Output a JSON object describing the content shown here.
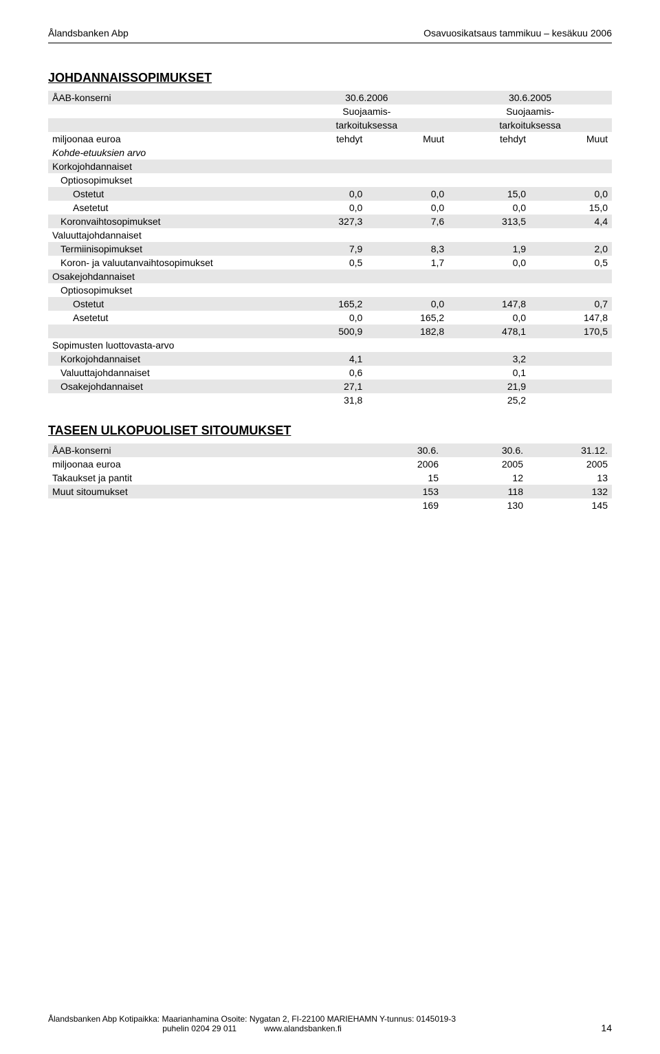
{
  "header": {
    "left": "Ålandsbanken Abp",
    "right": "Osavuosikatsaus tammikuu – kesäkuu 2006"
  },
  "section1": {
    "title": "JOHDANNAISSOPIMUKSET",
    "top_row": {
      "c0": "ÅAB-konserni",
      "c1": "30.6.2006",
      "c2": "30.6.2005"
    },
    "sub1_row": {
      "c1": "Suojaamis-",
      "c2": "Suojaamis-"
    },
    "sub2_row": {
      "c1": "tarkoituksessa",
      "c2": "tarkoituksessa"
    },
    "col_row": {
      "c0": "miljoonaa euroa",
      "c1": "tehdyt",
      "c2": "Muut",
      "c3": "tehdyt",
      "c4": "Muut"
    },
    "rows": [
      {
        "shaded": false,
        "italic": true,
        "indent": 0,
        "label": "Kohde-etuuksien arvo",
        "v": [
          "",
          "",
          "",
          ""
        ]
      },
      {
        "shaded": true,
        "italic": false,
        "indent": 0,
        "label": "Korkojohdannaiset",
        "v": [
          "",
          "",
          "",
          ""
        ]
      },
      {
        "shaded": false,
        "italic": false,
        "indent": 1,
        "label": "Optiosopimukset",
        "v": [
          "",
          "",
          "",
          ""
        ]
      },
      {
        "shaded": true,
        "italic": false,
        "indent": 2,
        "label": "Ostetut",
        "v": [
          "0,0",
          "0,0",
          "15,0",
          "0,0"
        ]
      },
      {
        "shaded": false,
        "italic": false,
        "indent": 2,
        "label": "Asetetut",
        "v": [
          "0,0",
          "0,0",
          "0,0",
          "15,0"
        ]
      },
      {
        "shaded": true,
        "italic": false,
        "indent": 1,
        "label": "Koronvaihtosopimukset",
        "v": [
          "327,3",
          "7,6",
          "313,5",
          "4,4"
        ]
      },
      {
        "shaded": false,
        "italic": false,
        "indent": 0,
        "label": "Valuuttajohdannaiset",
        "v": [
          "",
          "",
          "",
          ""
        ]
      },
      {
        "shaded": true,
        "italic": false,
        "indent": 1,
        "label": "Termiinisopimukset",
        "v": [
          "7,9",
          "8,3",
          "1,9",
          "2,0"
        ]
      },
      {
        "shaded": false,
        "italic": false,
        "indent": 1,
        "label": "Koron- ja valuutanvaihtosopimukset",
        "v": [
          "0,5",
          "1,7",
          "0,0",
          "0,5"
        ]
      },
      {
        "shaded": true,
        "italic": false,
        "indent": 0,
        "label": "Osakejohdannaiset",
        "v": [
          "",
          "",
          "",
          ""
        ]
      },
      {
        "shaded": false,
        "italic": false,
        "indent": 1,
        "label": "Optiosopimukset",
        "v": [
          "",
          "",
          "",
          ""
        ]
      },
      {
        "shaded": true,
        "italic": false,
        "indent": 2,
        "label": "Ostetut",
        "v": [
          "165,2",
          "0,0",
          "147,8",
          "0,7"
        ]
      },
      {
        "shaded": false,
        "italic": false,
        "indent": 2,
        "label": "Asetetut",
        "v": [
          "0,0",
          "165,2",
          "0,0",
          "147,8"
        ]
      },
      {
        "shaded": true,
        "italic": false,
        "indent": 0,
        "label": "",
        "v": [
          "500,9",
          "182,8",
          "478,1",
          "170,5"
        ]
      },
      {
        "shaded": false,
        "italic": false,
        "indent": 0,
        "label": "Sopimusten luottovasta-arvo",
        "v": [
          "",
          "",
          "",
          ""
        ]
      },
      {
        "shaded": true,
        "italic": false,
        "indent": 1,
        "label": "Korkojohdannaiset",
        "v": [
          "4,1",
          "",
          "3,2",
          ""
        ]
      },
      {
        "shaded": false,
        "italic": false,
        "indent": 1,
        "label": "Valuuttajohdannaiset",
        "v": [
          "0,6",
          "",
          "0,1",
          ""
        ]
      },
      {
        "shaded": true,
        "italic": false,
        "indent": 1,
        "label": "Osakejohdannaiset",
        "v": [
          "27,1",
          "",
          "21,9",
          ""
        ]
      },
      {
        "shaded": false,
        "italic": false,
        "indent": 0,
        "label": "",
        "v": [
          "31,8",
          "",
          "25,2",
          ""
        ]
      }
    ]
  },
  "section2": {
    "title": "TASEEN ULKOPUOLISET SITOUMUKSET",
    "header_row": {
      "c0": "ÅAB-konserni",
      "c1": "30.6.",
      "c2": "30.6.",
      "c3": "31.12."
    },
    "sub_row": {
      "c0": "miljoonaa euroa",
      "c1": "2006",
      "c2": "2005",
      "c3": "2005"
    },
    "rows": [
      {
        "shaded": false,
        "label": "Takaukset ja pantit",
        "v": [
          "15",
          "12",
          "13"
        ]
      },
      {
        "shaded": true,
        "label": "Muut sitoumukset",
        "v": [
          "153",
          "118",
          "132"
        ]
      },
      {
        "shaded": false,
        "label": "",
        "v": [
          "169",
          "130",
          "145"
        ]
      }
    ]
  },
  "footer": {
    "line1_left": "Ålandsbanken Abp  Kotipaikka: Maarianhamina  Osoite: Nygatan 2, FI-22100 MARIEHAMN  Y-tunnus: 0145019-3",
    "line2_a": "puhelin 0204 29 011",
    "line2_b": "www.alandsbanken.fi",
    "page_number": "14"
  }
}
